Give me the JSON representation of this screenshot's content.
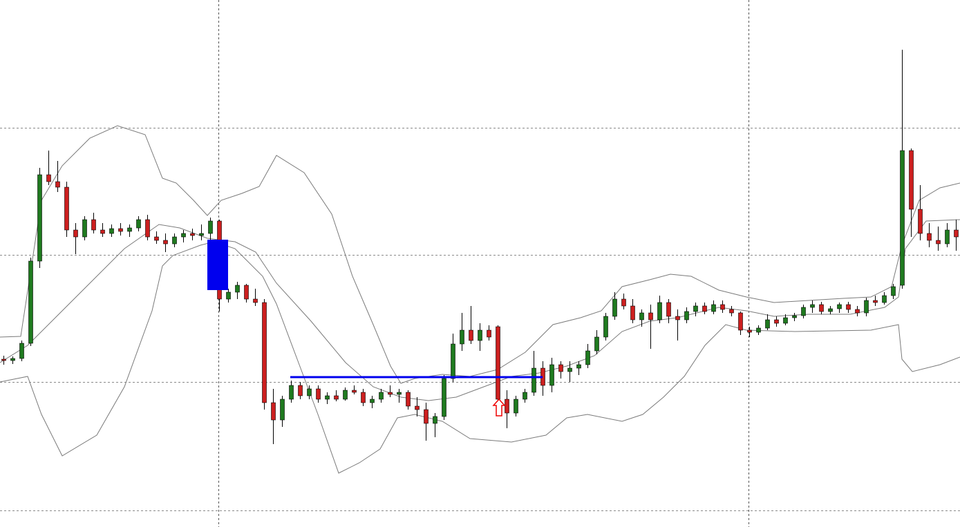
{
  "chart_data": {
    "type": "candlestick",
    "x": [
      5,
      18,
      31,
      44,
      57,
      70,
      83,
      96,
      109,
      122,
      135,
      148,
      161,
      174,
      187,
      200,
      213,
      226,
      239,
      252,
      265,
      278,
      291,
      304,
      317,
      330,
      343,
      356,
      369,
      382,
      395,
      408,
      421,
      434,
      447,
      460,
      473,
      486,
      499,
      512,
      525,
      538,
      551,
      564,
      577,
      590,
      603,
      616,
      629,
      642,
      655,
      668,
      681,
      694,
      707,
      720,
      733,
      746,
      759,
      772,
      785,
      798,
      811,
      824,
      837,
      850,
      863,
      876,
      889,
      902,
      915,
      928,
      941,
      954,
      967,
      980,
      993,
      1006,
      1019,
      1032,
      1045,
      1058,
      1071,
      1084,
      1097,
      1110,
      1123,
      1136,
      1149,
      1162,
      1175,
      1188,
      1201,
      1214,
      1227,
      1240,
      1253,
      1266,
      1279,
      1292,
      1305,
      1318,
      1331,
      1344,
      1357,
      1370,
      1383
    ],
    "open": [
      243,
      241,
      244,
      266,
      385,
      510,
      500,
      492,
      430,
      420,
      445,
      430,
      425,
      432,
      428,
      433,
      445,
      420,
      415,
      410,
      420,
      425,
      422,
      425,
      443,
      330,
      340,
      350,
      330,
      325,
      180,
      155,
      185,
      205,
      190,
      200,
      185,
      190,
      185,
      198,
      195,
      180,
      185,
      195,
      192,
      195,
      175,
      170,
      150,
      160,
      215,
      265,
      285,
      270,
      285,
      290,
      185,
      165,
      185,
      195,
      230,
      205,
      235,
      225,
      230,
      235,
      255,
      275,
      305,
      330,
      320,
      300,
      310,
      300,
      325,
      305,
      300,
      312,
      320,
      312,
      322,
      315,
      310,
      285,
      282,
      288,
      300,
      295,
      303,
      306,
      318,
      322,
      312,
      316,
      322,
      315,
      310,
      328,
      325,
      335,
      350,
      545,
      460,
      425,
      415,
      410,
      430
    ],
    "high": [
      248,
      247,
      270,
      390,
      520,
      545,
      530,
      500,
      440,
      450,
      455,
      440,
      438,
      440,
      438,
      450,
      452,
      428,
      425,
      425,
      430,
      432,
      438,
      448,
      445,
      345,
      355,
      352,
      345,
      330,
      200,
      190,
      212,
      210,
      205,
      205,
      195,
      198,
      202,
      205,
      200,
      190,
      200,
      205,
      200,
      198,
      188,
      180,
      165,
      220,
      280,
      310,
      320,
      295,
      292,
      292,
      198,
      190,
      200,
      255,
      240,
      245,
      240,
      240,
      240,
      265,
      285,
      310,
      340,
      338,
      330,
      315,
      322,
      335,
      330,
      315,
      318,
      325,
      325,
      328,
      328,
      320,
      312,
      290,
      292,
      308,
      305,
      308,
      310,
      322,
      328,
      326,
      320,
      325,
      326,
      320,
      332,
      335,
      340,
      352,
      691,
      548,
      495,
      440,
      435,
      440,
      445
    ],
    "low": [
      235,
      236,
      240,
      262,
      375,
      495,
      485,
      420,
      395,
      415,
      425,
      420,
      420,
      422,
      420,
      428,
      415,
      410,
      398,
      405,
      412,
      415,
      415,
      415,
      312,
      325,
      330,
      325,
      320,
      170,
      120,
      145,
      180,
      185,
      185,
      180,
      178,
      182,
      183,
      192,
      175,
      172,
      180,
      188,
      180,
      170,
      160,
      125,
      130,
      155,
      210,
      255,
      265,
      255,
      270,
      170,
      143,
      160,
      180,
      190,
      190,
      195,
      215,
      210,
      220,
      230,
      250,
      270,
      300,
      315,
      295,
      290,
      258,
      295,
      295,
      270,
      295,
      305,
      308,
      308,
      310,
      305,
      278,
      275,
      278,
      285,
      290,
      292,
      298,
      302,
      310,
      308,
      308,
      310,
      310,
      305,
      305,
      320,
      322,
      330,
      345,
      420,
      415,
      405,
      400,
      405,
      400
    ],
    "close": [
      241,
      244,
      266,
      385,
      510,
      500,
      492,
      430,
      420,
      445,
      430,
      425,
      432,
      428,
      433,
      445,
      420,
      415,
      410,
      420,
      425,
      422,
      425,
      443,
      330,
      340,
      350,
      330,
      325,
      180,
      155,
      185,
      205,
      190,
      200,
      185,
      190,
      185,
      198,
      195,
      180,
      185,
      195,
      192,
      195,
      175,
      170,
      150,
      160,
      215,
      265,
      285,
      270,
      285,
      275,
      185,
      165,
      185,
      195,
      230,
      205,
      235,
      225,
      230,
      235,
      255,
      275,
      305,
      330,
      320,
      300,
      310,
      300,
      325,
      305,
      300,
      312,
      320,
      312,
      322,
      315,
      310,
      285,
      282,
      288,
      300,
      295,
      303,
      306,
      318,
      322,
      312,
      316,
      322,
      315,
      310,
      328,
      325,
      335,
      348,
      545,
      460,
      425,
      415,
      410,
      430,
      420
    ],
    "up_color": "#1f7a1f",
    "down_color": "#cc1f1f",
    "xlim": [
      0,
      1389
    ],
    "ylim": [
      0,
      763
    ],
    "xticks": [
      316,
      1083
    ],
    "yticks": [
      24,
      210,
      394,
      578
    ],
    "grid": true,
    "series": [
      {
        "color": "#7a7a7a",
        "x": [
          0,
          30,
          60,
          90,
          130,
          170,
          210,
          235,
          255,
          280,
          300,
          320,
          350,
          375,
          400,
          440,
          480,
          510,
          540,
          565,
          580,
          600,
          640,
          680,
          720,
          760,
          780,
          800,
          840,
          870,
          900,
          940,
          970,
          1000,
          1040,
          1080,
          1120,
          1170,
          1220,
          1260,
          1290,
          1305,
          1330,
          1360,
          1389
        ],
        "values": [
          275,
          276,
          473,
          523,
          563,
          581,
          568,
          505,
          498,
          473,
          451,
          473,
          483,
          493,
          538,
          513,
          453,
          363,
          293,
          233,
          208,
          215,
          221,
          218,
          228,
          253,
          273,
          293,
          303,
          313,
          348,
          358,
          366,
          363,
          343,
          333,
          325,
          328,
          331,
          333,
          348,
          408,
          473,
          491,
          498
        ]
      },
      {
        "color": "#7a7a7a",
        "x": [
          0,
          40,
          80,
          130,
          180,
          230,
          260,
          300,
          340,
          370,
          400,
          450,
          500,
          540,
          580,
          620,
          660,
          700,
          740,
          780,
          820,
          860,
          900,
          940,
          980,
          1040,
          1080,
          1120,
          1170,
          1230,
          1280,
          1300,
          1310,
          1340,
          1389
        ],
        "values": [
          238,
          263,
          303,
          353,
          403,
          438,
          433,
          418,
          413,
          398,
          353,
          298,
          238,
          203,
          188,
          183,
          188,
          203,
          218,
          223,
          233,
          248,
          283,
          298,
          303,
          318,
          313,
          305,
          308,
          308,
          318,
          333,
          403,
          443,
          445
        ]
      },
      {
        "color": "#7a7a7a",
        "x": [
          0,
          40,
          60,
          90,
          140,
          180,
          220,
          235,
          250,
          290,
          310,
          340,
          380,
          400,
          430,
          460,
          490,
          520,
          550,
          575,
          600,
          640,
          680,
          740,
          790,
          820,
          850,
          900,
          930,
          960,
          990,
          1020,
          1050,
          1080,
          1150,
          1260,
          1300,
          1305,
          1320,
          1360,
          1389
        ],
        "values": [
          210,
          218,
          163,
          103,
          133,
          203,
          313,
          378,
          393,
          408,
          413,
          403,
          363,
          323,
          243,
          163,
          78,
          93,
          113,
          158,
          163,
          153,
          128,
          123,
          133,
          158,
          163,
          153,
          163,
          188,
          218,
          263,
          293,
          285,
          283,
          285,
          293,
          243,
          225,
          235,
          246
        ]
      }
    ],
    "annotations": {
      "rectangle": {
        "x": [
          300,
          330
        ],
        "y": [
          343,
          416
        ],
        "color": "#0000ee"
      },
      "hline": {
        "x": [
          420,
          785
        ],
        "y": 217,
        "color": "#0000ee"
      },
      "arrow": {
        "x": 722,
        "y": 185,
        "color": "#ee0000"
      }
    }
  }
}
